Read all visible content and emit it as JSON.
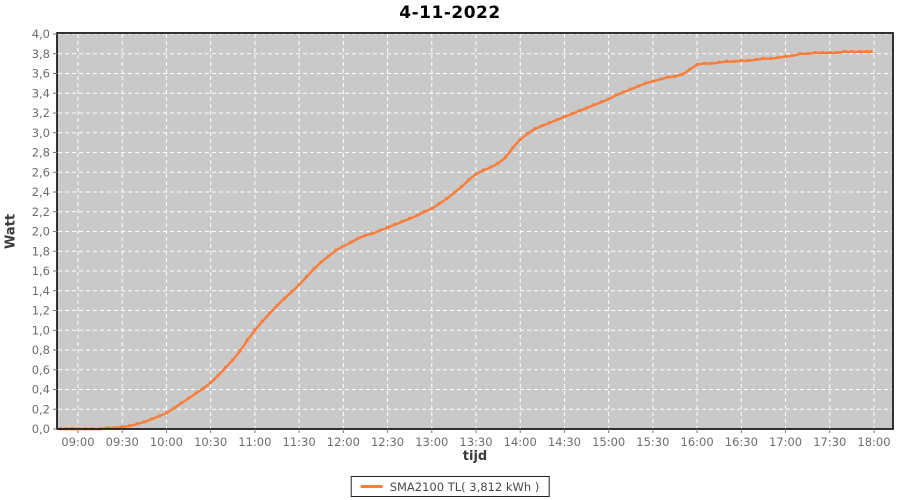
{
  "colors": {
    "line": "#f87e3c",
    "plot_bg": "#c9c9c9",
    "grid": "#ffffff",
    "tick": "#7a7a7a",
    "tick_text": "#6e6e6e",
    "border": "#1c1c1c"
  },
  "chart_data": {
    "type": "line",
    "title": "4-11-2022",
    "xlabel": "tijd",
    "ylabel": "Watt",
    "ylim": [
      0.0,
      4.0
    ],
    "y_tick_step": 0.2,
    "y_tick_labels": [
      "0,0",
      "0,2",
      "0,4",
      "0,6",
      "0,8",
      "1,0",
      "1,2",
      "1,4",
      "1,6",
      "1,8",
      "2,0",
      "2,2",
      "2,4",
      "2,6",
      "2,8",
      "3,0",
      "3,2",
      "3,4",
      "3,6",
      "3,8",
      "4,0"
    ],
    "x_tick_labels": [
      "09:00",
      "09:30",
      "10:00",
      "10:30",
      "11:00",
      "11:30",
      "12:00",
      "12:30",
      "13:00",
      "13:30",
      "14:00",
      "14:30",
      "15:00",
      "15:30",
      "16:00",
      "16:30",
      "17:00",
      "17:30",
      "18:00"
    ],
    "grid": "white dashed on gray panel",
    "legend_position": "bottom-center",
    "series": [
      {
        "name": "SMA2100 TL( 3,812 kWh )",
        "color": "#f87e3c",
        "points": [
          [
            "08:48",
            0.0
          ],
          [
            "08:52",
            0.0
          ],
          [
            "08:56",
            0.0
          ],
          [
            "09:00",
            0.0
          ],
          [
            "09:05",
            0.0
          ],
          [
            "09:10",
            0.0
          ],
          [
            "09:15",
            0.0
          ],
          [
            "09:20",
            0.01
          ],
          [
            "09:25",
            0.01
          ],
          [
            "09:30",
            0.02
          ],
          [
            "09:35",
            0.03
          ],
          [
            "09:40",
            0.05
          ],
          [
            "09:45",
            0.07
          ],
          [
            "09:50",
            0.1
          ],
          [
            "09:55",
            0.13
          ],
          [
            "10:00",
            0.16
          ],
          [
            "10:05",
            0.21
          ],
          [
            "10:10",
            0.26
          ],
          [
            "10:15",
            0.31
          ],
          [
            "10:20",
            0.36
          ],
          [
            "10:25",
            0.41
          ],
          [
            "10:30",
            0.47
          ],
          [
            "10:35",
            0.54
          ],
          [
            "10:40",
            0.62
          ],
          [
            "10:45",
            0.7
          ],
          [
            "10:50",
            0.79
          ],
          [
            "10:55",
            0.9
          ],
          [
            "11:00",
            1.0
          ],
          [
            "11:05",
            1.09
          ],
          [
            "11:10",
            1.17
          ],
          [
            "11:15",
            1.25
          ],
          [
            "11:20",
            1.32
          ],
          [
            "11:25",
            1.39
          ],
          [
            "11:30",
            1.46
          ],
          [
            "11:35",
            1.54
          ],
          [
            "11:40",
            1.62
          ],
          [
            "11:45",
            1.69
          ],
          [
            "11:50",
            1.75
          ],
          [
            "11:55",
            1.81
          ],
          [
            "12:00",
            1.85
          ],
          [
            "12:05",
            1.89
          ],
          [
            "12:10",
            1.93
          ],
          [
            "12:15",
            1.96
          ],
          [
            "12:20",
            1.98
          ],
          [
            "12:25",
            2.01
          ],
          [
            "12:30",
            2.04
          ],
          [
            "12:35",
            2.07
          ],
          [
            "12:40",
            2.1
          ],
          [
            "12:45",
            2.13
          ],
          [
            "12:50",
            2.16
          ],
          [
            "12:55",
            2.2
          ],
          [
            "13:00",
            2.23
          ],
          [
            "13:05",
            2.28
          ],
          [
            "13:10",
            2.33
          ],
          [
            "13:15",
            2.39
          ],
          [
            "13:20",
            2.45
          ],
          [
            "13:25",
            2.52
          ],
          [
            "13:30",
            2.58
          ],
          [
            "13:35",
            2.62
          ],
          [
            "13:40",
            2.65
          ],
          [
            "13:45",
            2.69
          ],
          [
            "13:50",
            2.75
          ],
          [
            "13:55",
            2.85
          ],
          [
            "14:00",
            2.93
          ],
          [
            "14:05",
            2.99
          ],
          [
            "14:10",
            3.04
          ],
          [
            "14:15",
            3.07
          ],
          [
            "14:20",
            3.1
          ],
          [
            "14:25",
            3.13
          ],
          [
            "14:30",
            3.16
          ],
          [
            "14:35",
            3.19
          ],
          [
            "14:40",
            3.22
          ],
          [
            "14:45",
            3.25
          ],
          [
            "14:50",
            3.28
          ],
          [
            "14:55",
            3.31
          ],
          [
            "15:00",
            3.34
          ],
          [
            "15:05",
            3.38
          ],
          [
            "15:10",
            3.41
          ],
          [
            "15:15",
            3.44
          ],
          [
            "15:20",
            3.47
          ],
          [
            "15:25",
            3.5
          ],
          [
            "15:30",
            3.52
          ],
          [
            "15:35",
            3.54
          ],
          [
            "15:40",
            3.56
          ],
          [
            "15:45",
            3.57
          ],
          [
            "15:50",
            3.59
          ],
          [
            "15:55",
            3.64
          ],
          [
            "16:00",
            3.69
          ],
          [
            "16:05",
            3.7
          ],
          [
            "16:10",
            3.7
          ],
          [
            "16:15",
            3.71
          ],
          [
            "16:20",
            3.72
          ],
          [
            "16:25",
            3.72
          ],
          [
            "16:30",
            3.73
          ],
          [
            "16:35",
            3.73
          ],
          [
            "16:40",
            3.74
          ],
          [
            "16:45",
            3.75
          ],
          [
            "16:50",
            3.75
          ],
          [
            "16:55",
            3.76
          ],
          [
            "17:00",
            3.77
          ],
          [
            "17:05",
            3.78
          ],
          [
            "17:10",
            3.8
          ],
          [
            "17:15",
            3.8
          ],
          [
            "17:20",
            3.81
          ],
          [
            "17:25",
            3.81
          ],
          [
            "17:30",
            3.81
          ],
          [
            "17:35",
            3.81
          ],
          [
            "17:40",
            3.82
          ],
          [
            "17:45",
            3.82
          ],
          [
            "17:50",
            3.82
          ],
          [
            "17:55",
            3.82
          ],
          [
            "17:58",
            3.82
          ]
        ]
      }
    ]
  }
}
